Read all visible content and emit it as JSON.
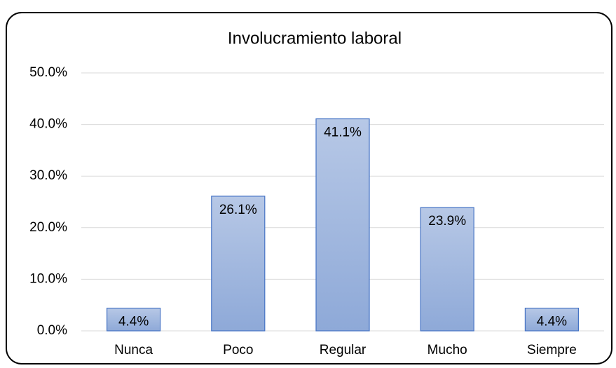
{
  "chart_data": {
    "type": "bar",
    "title": "Involucramiento laboral",
    "categories": [
      "Nunca",
      "Poco",
      "Regular",
      "Mucho",
      "Siempre"
    ],
    "values": [
      4.4,
      26.1,
      41.1,
      23.9,
      4.4
    ],
    "value_labels": [
      "4.4%",
      "26.1%",
      "41.1%",
      "23.9%",
      "4.4%"
    ],
    "color": "#4472c4",
    "ylim": [
      0,
      50
    ],
    "yticks": [
      {
        "value": 0,
        "label": "0.0%"
      },
      {
        "value": 10,
        "label": "10.0%"
      },
      {
        "value": 20,
        "label": "20.0%"
      },
      {
        "value": 30,
        "label": "30.0%"
      },
      {
        "value": 40,
        "label": "40.0%"
      },
      {
        "value": 50,
        "label": "50.0%"
      }
    ],
    "grid": true
  }
}
